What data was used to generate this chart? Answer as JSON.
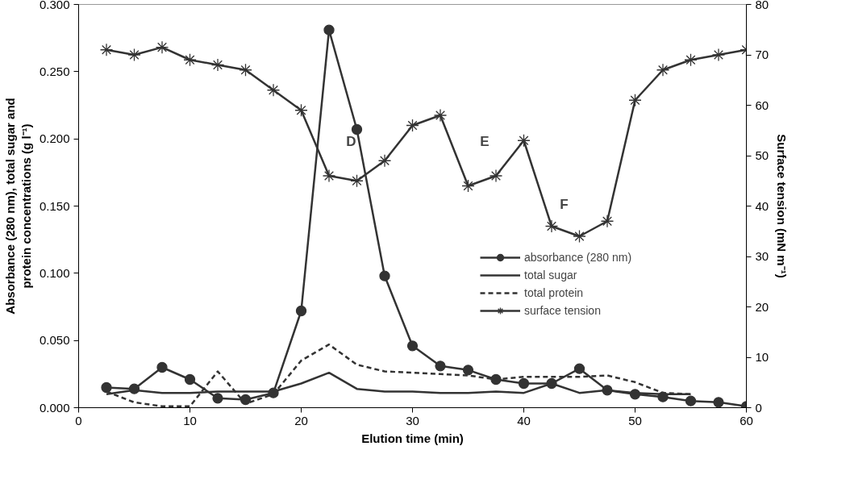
{
  "chart_data": {
    "type": "line",
    "xlabel": "Elution time (min)",
    "ylabel": "Absorbance (280 nm), total sugar and\nprotein concentrations (g l⁻¹)",
    "y2label": "Surface tension (mN m⁻¹)",
    "x": [
      2.5,
      5,
      7.5,
      10,
      12.5,
      15,
      17.5,
      20,
      22.5,
      25,
      27.5,
      30,
      32.5,
      35,
      37.5,
      40,
      42.5,
      45,
      47.5,
      50,
      52.5,
      55,
      57.5,
      60
    ],
    "series": [
      {
        "name": "absorbance (280 nm)",
        "color": "#333333",
        "marker": "circle",
        "line_style": "solid",
        "values": [
          0.015,
          0.014,
          0.03,
          0.021,
          0.007,
          0.006,
          0.011,
          0.072,
          0.281,
          0.207,
          0.098,
          0.046,
          0.031,
          0.028,
          0.021,
          0.018,
          0.018,
          0.029,
          0.013,
          0.01,
          0.008,
          0.005,
          0.004,
          0.001
        ]
      },
      {
        "name": "total sugar",
        "color": "#333333",
        "marker": "none",
        "line_style": "solid",
        "x": [
          2.5,
          5,
          7.5,
          10,
          12.5,
          15,
          17.5,
          20,
          22.5,
          25,
          27.5,
          30,
          32.5,
          35,
          37.5,
          40,
          42.5,
          45,
          47.5,
          50,
          52.5,
          55
        ],
        "values": [
          0.01,
          0.013,
          0.011,
          0.011,
          0.012,
          0.012,
          0.012,
          0.018,
          0.026,
          0.014,
          0.012,
          0.012,
          0.011,
          0.011,
          0.012,
          0.011,
          0.018,
          0.011,
          0.013,
          0.011,
          0.01,
          0.01
        ]
      },
      {
        "name": "total protein",
        "color": "#333333",
        "marker": "none",
        "line_style": "dashed",
        "x": [
          2.5,
          5,
          7.5,
          10,
          12.5,
          15,
          17.5,
          20,
          22.5,
          25,
          27.5,
          30,
          32.5,
          35,
          37.5,
          40,
          42.5,
          45,
          47.5,
          50,
          52.5,
          55
        ],
        "values": [
          0.012,
          0.004,
          0.001,
          0.001,
          0.027,
          0.003,
          0.01,
          0.035,
          0.047,
          0.032,
          0.027,
          0.026,
          0.025,
          0.024,
          0.021,
          0.023,
          0.023,
          0.023,
          0.024,
          0.019,
          0.011,
          0.01
        ]
      },
      {
        "name": "surface tension",
        "color": "#333333",
        "marker": "cross",
        "line_style": "solid",
        "axis": "y2",
        "values": [
          71,
          70,
          71.5,
          69,
          68,
          67,
          63,
          59,
          46,
          45,
          49,
          56,
          58,
          44,
          46,
          53,
          36,
          34,
          37,
          61,
          67,
          69,
          70,
          71
        ]
      }
    ],
    "xlim": [
      0,
      60
    ],
    "xticks": [
      0,
      10,
      20,
      30,
      40,
      50,
      60
    ],
    "ylim": [
      0,
      0.3
    ],
    "yticks": [
      {
        "value": 0,
        "label": "0.000"
      },
      {
        "value": 0.05,
        "label": "0.050"
      },
      {
        "value": 0.1,
        "label": "0.100"
      },
      {
        "value": 0.15,
        "label": "0.150"
      },
      {
        "value": 0.2,
        "label": "0.200"
      },
      {
        "value": 0.25,
        "label": "0.250"
      },
      {
        "value": 0.3,
        "label": "0.300"
      }
    ],
    "y2lim": [
      0,
      80
    ],
    "y2ticks": [
      0,
      10,
      20,
      30,
      40,
      50,
      60,
      70,
      80
    ],
    "annotations": [
      "D",
      "E",
      "F"
    ],
    "legend": "right",
    "grid": false
  }
}
